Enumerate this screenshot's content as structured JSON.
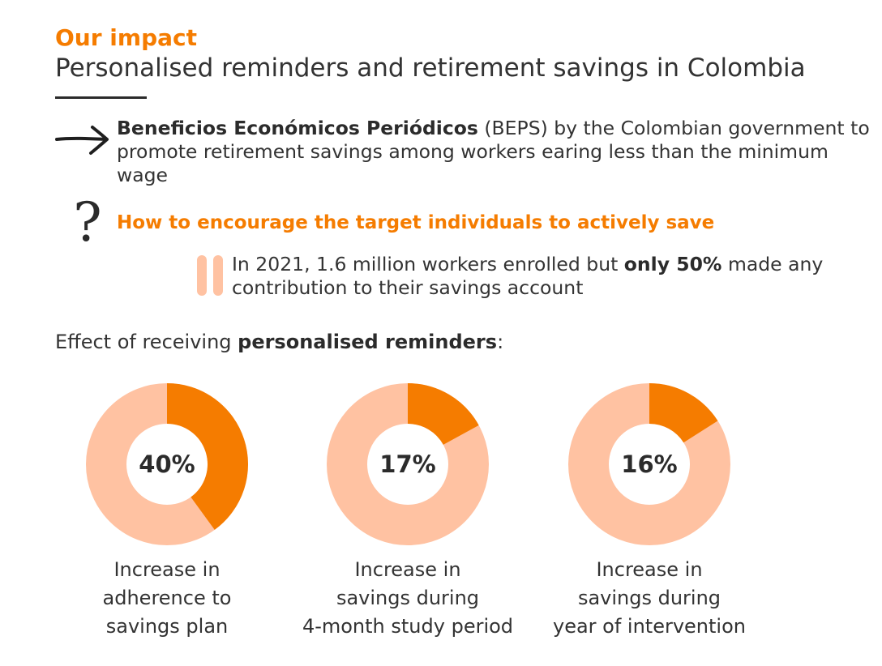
{
  "header": {
    "kicker": "Our impact",
    "headline": "Personalised reminders and retirement savings in Colombia"
  },
  "intro": {
    "program_name": "Beneficios Económicos Periódicos",
    "rest": " (BEPS) by the Colombian government to promote retirement savings among workers earing less than the minimum wage"
  },
  "question": "How to encourage the target individuals to actively save",
  "quote": {
    "before": "In 2021, 1.6 million workers enrolled but ",
    "emphasis": "only 50%",
    "after": " made any contribution to their savings account"
  },
  "effect_heading": {
    "before": "Effect of receiving ",
    "emphasis": "personalised reminders",
    "after": ":"
  },
  "colors": {
    "accent": "#f57c00",
    "accent_light": "#ffc2a2",
    "text": "#333333"
  },
  "icons": [
    "arrow-right-icon",
    "question-mark-icon",
    "quote-icon"
  ],
  "chart_data": [
    {
      "type": "pie",
      "value": 40,
      "label": "40%",
      "caption": [
        "Increase in",
        "adherence to",
        "savings plan"
      ]
    },
    {
      "type": "pie",
      "value": 17,
      "label": "17%",
      "caption": [
        "Increase in",
        "savings during",
        "4-month study period"
      ]
    },
    {
      "type": "pie",
      "value": 16,
      "label": "16%",
      "caption": [
        "Increase in",
        "savings during",
        "year of intervention"
      ]
    }
  ]
}
